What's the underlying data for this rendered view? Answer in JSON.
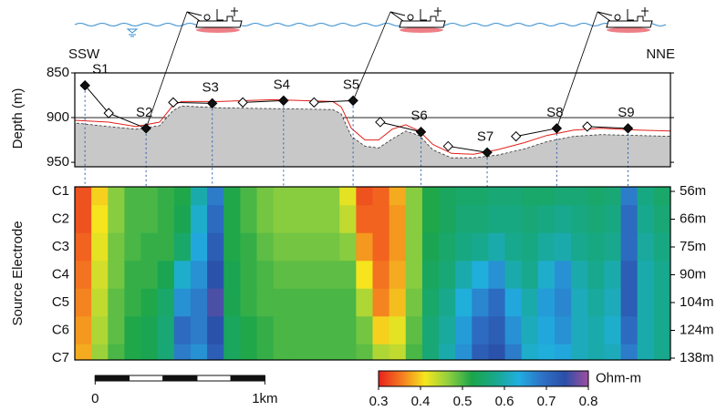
{
  "header": {
    "left": "SSW",
    "right": "NNE"
  },
  "chart_data": [
    {
      "type": "profile",
      "ylabel": "Depth (m)",
      "xlim": [
        -0.12,
        3.39
      ],
      "ylim": [
        850,
        955
      ],
      "yticks": [
        850,
        900,
        950
      ],
      "grid": true,
      "seafloor": {
        "color": "#c8c8c8",
        "x": [
          -0.12,
          0.08,
          0.24,
          0.38,
          0.46,
          0.51,
          0.73,
          1.05,
          1.4,
          1.45,
          1.51,
          1.59,
          1.67,
          1.75,
          1.83,
          1.91,
          1.99,
          2.1,
          2.23,
          2.37,
          2.53,
          2.66,
          2.82,
          2.98,
          3.2,
          3.39
        ],
        "depth": [
          906,
          910,
          913,
          909,
          892,
          887,
          889,
          890,
          891,
          896,
          921,
          932,
          934,
          924,
          915,
          920,
          936,
          945,
          945,
          942,
          935,
          927,
          921,
          919,
          920,
          921
        ]
      },
      "tow_track": {
        "color": "#e0201b",
        "x": [
          -0.12,
          0.08,
          0.24,
          0.38,
          0.46,
          0.51,
          0.73,
          1.05,
          1.4,
          1.45,
          1.51,
          1.59,
          1.67,
          1.75,
          1.83,
          1.91,
          1.99,
          2.1,
          2.23,
          2.37,
          2.53,
          2.66,
          2.82,
          2.98,
          3.2,
          3.39
        ],
        "depth": [
          903,
          905,
          910,
          905,
          886,
          882,
          882,
          880,
          882,
          888,
          912,
          925,
          925,
          913,
          908,
          915,
          930,
          940,
          941,
          936,
          928,
          920,
          914,
          912,
          914,
          915
        ]
      },
      "stations": {
        "labels": [
          "S1",
          "S2",
          "S3",
          "S4",
          "S5",
          "S6",
          "S7",
          "S8",
          "S9"
        ],
        "x": [
          -0.06,
          0.3,
          0.69,
          1.11,
          1.52,
          1.92,
          2.31,
          2.72,
          3.14
        ],
        "depth": [
          864,
          912,
          884,
          881,
          881,
          916,
          939,
          912,
          912
        ]
      },
      "receivers": {
        "x": [
          0.08,
          0.46,
          0.87,
          1.29,
          1.68,
          2.08,
          2.48,
          2.9
        ],
        "depth": [
          895,
          883,
          883,
          883,
          905,
          932,
          921,
          910
        ]
      }
    },
    {
      "type": "heatmap",
      "ylabel": "Source Electrode",
      "xlim": [
        -0.12,
        3.39
      ],
      "rows": [
        "C1",
        "C2",
        "C3",
        "C4",
        "C5",
        "C6",
        "C7"
      ],
      "row_labels_right": [
        "56m",
        "66m",
        "75m",
        "90m",
        "104m",
        "124m",
        "138m"
      ],
      "values": [
        [
          0.33,
          0.4,
          0.47,
          0.5,
          0.5,
          0.51,
          0.52,
          0.6,
          0.68,
          0.52,
          0.5,
          0.48,
          0.47,
          0.47,
          0.47,
          0.47,
          0.42,
          0.33,
          0.34,
          0.38,
          0.47,
          0.52,
          0.54,
          0.55,
          0.55,
          0.56,
          0.56,
          0.55,
          0.55,
          0.56,
          0.56,
          0.55,
          0.56,
          0.68,
          0.57,
          0.55
        ],
        [
          0.33,
          0.41,
          0.47,
          0.5,
          0.5,
          0.51,
          0.53,
          0.62,
          0.7,
          0.52,
          0.5,
          0.48,
          0.47,
          0.47,
          0.47,
          0.47,
          0.44,
          0.34,
          0.34,
          0.37,
          0.47,
          0.52,
          0.54,
          0.56,
          0.56,
          0.57,
          0.57,
          0.56,
          0.57,
          0.58,
          0.57,
          0.56,
          0.57,
          0.7,
          0.58,
          0.56
        ],
        [
          0.34,
          0.42,
          0.48,
          0.5,
          0.51,
          0.51,
          0.55,
          0.64,
          0.72,
          0.52,
          0.51,
          0.49,
          0.48,
          0.48,
          0.48,
          0.48,
          0.47,
          0.37,
          0.34,
          0.37,
          0.47,
          0.53,
          0.55,
          0.57,
          0.58,
          0.6,
          0.58,
          0.57,
          0.59,
          0.6,
          0.58,
          0.57,
          0.58,
          0.7,
          0.59,
          0.57
        ],
        [
          0.35,
          0.43,
          0.48,
          0.51,
          0.51,
          0.53,
          0.62,
          0.66,
          0.74,
          0.53,
          0.51,
          0.5,
          0.49,
          0.49,
          0.49,
          0.49,
          0.49,
          0.41,
          0.35,
          0.38,
          0.47,
          0.54,
          0.56,
          0.6,
          0.63,
          0.66,
          0.6,
          0.58,
          0.62,
          0.66,
          0.6,
          0.58,
          0.6,
          0.72,
          0.6,
          0.58
        ],
        [
          0.36,
          0.44,
          0.49,
          0.51,
          0.52,
          0.55,
          0.66,
          0.68,
          0.76,
          0.53,
          0.51,
          0.5,
          0.5,
          0.5,
          0.5,
          0.5,
          0.5,
          0.45,
          0.36,
          0.39,
          0.48,
          0.55,
          0.58,
          0.63,
          0.67,
          0.7,
          0.64,
          0.6,
          0.65,
          0.67,
          0.61,
          0.59,
          0.61,
          0.72,
          0.6,
          0.58
        ],
        [
          0.37,
          0.45,
          0.49,
          0.52,
          0.53,
          0.56,
          0.7,
          0.68,
          0.74,
          0.54,
          0.52,
          0.51,
          0.5,
          0.5,
          0.5,
          0.5,
          0.5,
          0.48,
          0.4,
          0.42,
          0.49,
          0.56,
          0.59,
          0.65,
          0.7,
          0.72,
          0.66,
          0.61,
          0.64,
          0.66,
          0.61,
          0.6,
          0.62,
          0.7,
          0.6,
          0.58
        ],
        [
          0.38,
          0.46,
          0.5,
          0.52,
          0.53,
          0.56,
          0.68,
          0.66,
          0.72,
          0.54,
          0.52,
          0.51,
          0.5,
          0.5,
          0.5,
          0.5,
          0.5,
          0.49,
          0.45,
          0.44,
          0.5,
          0.56,
          0.6,
          0.66,
          0.72,
          0.74,
          0.68,
          0.62,
          0.63,
          0.64,
          0.61,
          0.6,
          0.61,
          0.68,
          0.6,
          0.58
        ]
      ],
      "colorbar": {
        "label": "Ohm-m",
        "clim": [
          0.3,
          0.8
        ],
        "ticks": [
          0.3,
          0.4,
          0.5,
          0.6,
          0.7,
          0.8
        ],
        "colors": [
          "#e8211e",
          "#f47c20",
          "#f5e61e",
          "#8fcf3f",
          "#1ba54a",
          "#18a88a",
          "#20aee0",
          "#2e72c6",
          "#2b4fa8",
          "#a04ea0"
        ]
      },
      "scale_bar": {
        "ticks": [
          {
            "value": 0,
            "label": "0"
          },
          {
            "value": 1,
            "label": "1km"
          }
        ]
      }
    }
  ]
}
